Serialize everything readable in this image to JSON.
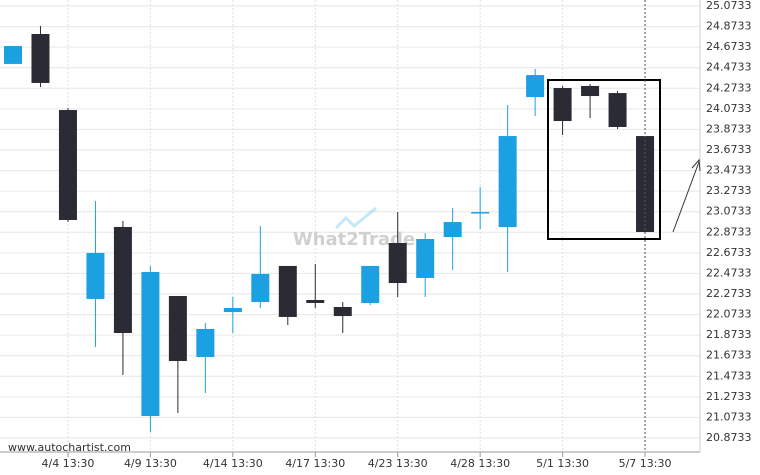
{
  "chart_data": {
    "type": "candlestick",
    "source": "www.autochartist.com",
    "watermark": "What2Trade",
    "up_color": "#1ba1e2",
    "down_color": "#2b2b35",
    "categories": [
      null,
      null,
      "4/4 13:30",
      null,
      null,
      "4/9 13:30",
      null,
      null,
      "4/14 13:30",
      null,
      null,
      "4/17 13:30",
      null,
      null,
      "4/23 13:30",
      null,
      null,
      "4/28 13:30",
      null,
      null,
      "5/1 13:30",
      null,
      null,
      "5/7 13:30"
    ],
    "open": [
      24.51,
      24.801,
      24.062,
      22.225,
      22.925,
      21.087,
      22.254,
      21.661,
      22.098,
      22.195,
      22.546,
      22.215,
      22.147,
      22.186,
      22.769,
      22.429,
      22.827,
      23.07,
      22.924,
      24.188,
      24.276,
      24.296,
      24.227,
      23.809
    ],
    "high": [
      24.684,
      24.879,
      24.082,
      23.178,
      22.983,
      22.546,
      22.254,
      21.992,
      22.244,
      22.934,
      22.546,
      22.565,
      22.195,
      22.546,
      23.07,
      22.866,
      23.109,
      23.313,
      24.111,
      24.461,
      24.296,
      24.315,
      24.247,
      23.809
    ],
    "low": [
      24.51,
      24.286,
      22.973,
      21.758,
      21.486,
      20.932,
      21.117,
      21.311,
      21.894,
      22.137,
      21.972,
      22.137,
      21.894,
      22.166,
      22.244,
      22.244,
      22.506,
      22.905,
      22.487,
      24.004,
      23.819,
      23.984,
      23.877,
      22.876
    ],
    "close": [
      24.684,
      24.325,
      22.993,
      22.672,
      21.894,
      22.487,
      21.622,
      21.933,
      22.137,
      22.468,
      22.05,
      22.186,
      22.059,
      22.546,
      22.38,
      22.808,
      22.973,
      23.07,
      23.809,
      24.402,
      23.955,
      24.198,
      23.897,
      22.876
    ],
    "ylim": [
      20.7733,
      25.0733
    ],
    "yticks": [
      25.0733,
      24.8733,
      24.6733,
      24.4733,
      24.2733,
      24.0733,
      23.8733,
      23.6733,
      23.4733,
      23.2733,
      23.0733,
      22.8733,
      22.6733,
      22.4733,
      22.2733,
      22.0733,
      21.8733,
      21.6733,
      21.4733,
      21.2733,
      21.0733,
      20.8733
    ],
    "grid": true
  }
}
